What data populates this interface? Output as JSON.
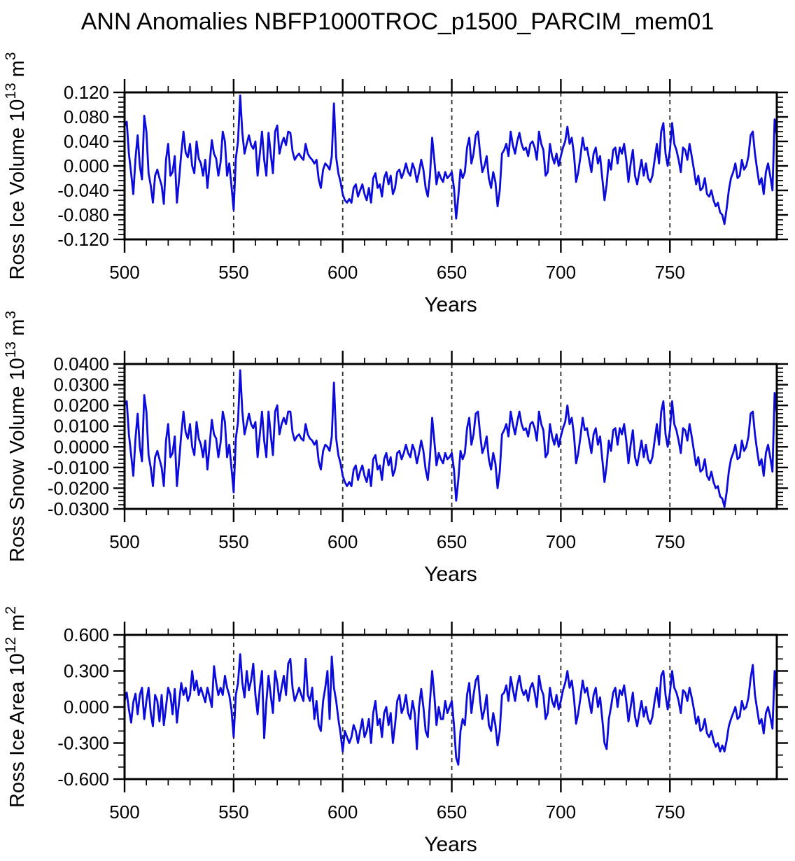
{
  "title": "ANN Anomalies NBFP1000TROC_p1500_PARCIM_mem01",
  "colors": {
    "line": "#0b0bdb",
    "frame": "#000000",
    "grid": "#2a2a2a",
    "background": "#ffffff"
  },
  "chart_data": [
    {
      "type": "line",
      "name": "ross-ice-volume",
      "ylabel_parts": [
        {
          "text": "Ross Ice Volume 10"
        },
        {
          "text": "13",
          "sup": true
        },
        {
          "text": " m"
        },
        {
          "text": "3",
          "sup": true
        }
      ],
      "xlabel": "Years",
      "xlim": [
        500,
        799
      ],
      "ylim": [
        -0.12,
        0.12
      ],
      "xticks": [
        {
          "v": 500,
          "label": "500"
        },
        {
          "v": 550,
          "label": "550"
        },
        {
          "v": 600,
          "label": "600"
        },
        {
          "v": 650,
          "label": "650"
        },
        {
          "v": 700,
          "label": "700"
        },
        {
          "v": 750,
          "label": "750"
        }
      ],
      "x_minor_step": 10,
      "ytick_values": [
        0.12,
        0.08,
        0.04,
        0.0,
        -0.04,
        -0.08,
        -0.12
      ],
      "ytick_labels": [
        "0.120",
        "0.080",
        "0.040",
        "0.000",
        "-0.040",
        "-0.080",
        "-0.120"
      ],
      "y_minor_step": 0.008,
      "gridlines_x": [
        550,
        600,
        650,
        700,
        750
      ],
      "x_start": 500,
      "x_step": 1,
      "values": [
        0.065,
        0.072,
        0.02,
        -0.012,
        -0.046,
        0.012,
        0.05,
        0.0,
        -0.022,
        0.082,
        0.056,
        -0.012,
        -0.032,
        -0.06,
        -0.016,
        -0.006,
        -0.02,
        -0.032,
        -0.062,
        0.01,
        0.036,
        -0.016,
        -0.01,
        0.016,
        -0.06,
        -0.022,
        0.02,
        0.056,
        0.022,
        0.014,
        0.036,
        0.0,
        -0.012,
        0.04,
        0.012,
        0.004,
        -0.016,
        0.01,
        -0.036,
        0.004,
        0.042,
        0.02,
        0.012,
        -0.016,
        0.006,
        0.056,
        0.04,
        -0.016,
        0.004,
        -0.032,
        -0.072,
        0.012,
        0.04,
        0.115,
        0.054,
        0.02,
        0.036,
        0.05,
        0.034,
        0.028,
        0.04,
        -0.016,
        0.02,
        0.056,
        0.01,
        -0.016,
        0.054,
        0.02,
        -0.012,
        0.056,
        0.066,
        0.02,
        0.036,
        0.046,
        0.034,
        0.056,
        0.054,
        0.024,
        0.01,
        0.016,
        0.02,
        0.014,
        0.01,
        0.036,
        0.02,
        0.014,
        0.01,
        0.004,
        0.01,
        -0.022,
        -0.036,
        -0.006,
        0.004,
        0.0,
        -0.006,
        0.016,
        0.102,
        0.014,
        -0.012,
        -0.026,
        -0.046,
        -0.056,
        -0.06,
        -0.054,
        -0.06,
        -0.036,
        -0.03,
        -0.05,
        -0.04,
        -0.03,
        -0.046,
        -0.056,
        -0.036,
        -0.06,
        -0.02,
        -0.012,
        -0.036,
        -0.03,
        -0.05,
        -0.02,
        -0.01,
        -0.03,
        -0.016,
        -0.046,
        -0.036,
        -0.01,
        -0.006,
        -0.02,
        -0.01,
        0.004,
        -0.01,
        -0.016,
        0.004,
        -0.006,
        -0.026,
        -0.01,
        0.01,
        -0.006,
        -0.036,
        -0.05,
        -0.016,
        0.046,
        0.01,
        -0.03,
        -0.01,
        -0.02,
        -0.026,
        -0.01,
        -0.02,
        -0.016,
        -0.01,
        -0.036,
        -0.086,
        -0.05,
        -0.006,
        -0.02,
        -0.01,
        0.03,
        0.046,
        0.004,
        0.02,
        0.05,
        0.056,
        0.02,
        -0.01,
        0.0,
        0.016,
        -0.02,
        -0.036,
        -0.01,
        -0.026,
        -0.066,
        -0.04,
        0.02,
        0.026,
        0.036,
        0.016,
        0.056,
        0.034,
        0.02,
        0.04,
        0.054,
        0.036,
        0.026,
        0.03,
        0.016,
        0.036,
        0.04,
        0.03,
        0.01,
        0.056,
        0.036,
        0.026,
        -0.016,
        -0.01,
        0.036,
        0.016,
        0.004,
        0.02,
        0.0,
        0.016,
        0.03,
        0.04,
        0.064,
        0.036,
        0.046,
        0.02,
        -0.026,
        -0.01,
        0.016,
        0.046,
        0.026,
        0.03,
        0.01,
        -0.01,
        0.02,
        0.03,
        0.004,
        0.016,
        -0.02,
        -0.056,
        -0.03,
        0.01,
        -0.006,
        0.026,
        0.03,
        0.004,
        0.03,
        0.02,
        0.036,
        0.01,
        -0.026,
        0.004,
        0.026,
        -0.016,
        -0.03,
        -0.01,
        0.01,
        -0.016,
        0.004,
        -0.02,
        -0.026,
        -0.016,
        0.01,
        0.036,
        0.004,
        0.056,
        0.07,
        0.02,
        0.0,
        0.026,
        0.07,
        0.036,
        0.026,
        0.01,
        -0.01,
        0.03,
        0.026,
        0.01,
        0.036,
        0.016,
        -0.006,
        -0.03,
        -0.016,
        -0.04,
        -0.036,
        -0.02,
        -0.046,
        -0.05,
        -0.04,
        -0.056,
        -0.066,
        -0.06,
        -0.076,
        -0.08,
        -0.095,
        -0.07,
        -0.04,
        -0.02,
        -0.01,
        0.004,
        -0.02,
        -0.016,
        0.01,
        -0.006,
        0.0,
        0.016,
        0.05,
        0.056,
        0.02,
        -0.006,
        -0.03,
        -0.02,
        -0.046,
        -0.01,
        0.004,
        -0.016,
        -0.04,
        0.076,
        0.05
      ]
    },
    {
      "type": "line",
      "name": "ross-snow-volume",
      "ylabel_parts": [
        {
          "text": "Ross Snow Volume 10"
        },
        {
          "text": "13",
          "sup": true
        },
        {
          "text": " m"
        },
        {
          "text": "3",
          "sup": true
        }
      ],
      "xlabel": "Years",
      "xlim": [
        500,
        799
      ],
      "ylim": [
        -0.03,
        0.04
      ],
      "xticks": [
        {
          "v": 500,
          "label": "500"
        },
        {
          "v": 550,
          "label": "550"
        },
        {
          "v": 600,
          "label": "600"
        },
        {
          "v": 650,
          "label": "650"
        },
        {
          "v": 700,
          "label": "700"
        },
        {
          "v": 750,
          "label": "750"
        }
      ],
      "x_minor_step": 10,
      "ytick_values": [
        0.04,
        0.03,
        0.02,
        0.01,
        0.0,
        -0.01,
        -0.02,
        -0.03
      ],
      "ytick_labels": [
        "0.0400",
        "0.0300",
        "0.0200",
        "0.0100",
        "0.0000",
        "-0.0100",
        "-0.0200",
        "-0.0300"
      ],
      "y_minor_step": 0.002,
      "gridlines_x": [
        550,
        600,
        650,
        700,
        750
      ],
      "x_start": 500,
      "x_step": 1,
      "values": [
        0.02,
        0.022,
        0.006,
        -0.004,
        -0.014,
        0.004,
        0.016,
        0.0,
        -0.007,
        0.025,
        0.017,
        -0.004,
        -0.01,
        -0.019,
        -0.005,
        -0.002,
        -0.006,
        -0.01,
        -0.019,
        0.003,
        0.011,
        -0.005,
        -0.003,
        0.005,
        -0.019,
        -0.007,
        0.006,
        0.017,
        0.007,
        0.004,
        0.011,
        0.0,
        -0.004,
        0.012,
        0.004,
        0.001,
        -0.005,
        0.003,
        -0.011,
        0.001,
        0.013,
        0.006,
        0.004,
        -0.005,
        0.002,
        0.017,
        0.012,
        -0.005,
        0.001,
        -0.01,
        -0.022,
        0.004,
        0.012,
        0.037,
        0.017,
        0.006,
        0.011,
        0.016,
        0.011,
        0.009,
        0.012,
        -0.005,
        0.006,
        0.017,
        0.003,
        -0.005,
        0.017,
        0.006,
        -0.004,
        0.017,
        0.02,
        0.006,
        0.011,
        0.014,
        0.011,
        0.017,
        0.017,
        0.007,
        0.003,
        0.005,
        0.006,
        0.004,
        0.003,
        0.011,
        0.006,
        0.004,
        0.003,
        0.001,
        0.003,
        -0.007,
        -0.011,
        -0.002,
        0.001,
        0.0,
        -0.002,
        0.005,
        0.031,
        0.004,
        -0.004,
        -0.008,
        -0.014,
        -0.017,
        -0.019,
        -0.017,
        -0.019,
        -0.011,
        -0.009,
        -0.016,
        -0.012,
        -0.009,
        -0.014,
        -0.017,
        -0.011,
        -0.019,
        -0.006,
        -0.004,
        -0.011,
        -0.009,
        -0.016,
        -0.006,
        -0.003,
        -0.009,
        -0.005,
        -0.014,
        -0.011,
        -0.003,
        -0.002,
        -0.006,
        -0.003,
        0.001,
        -0.003,
        -0.005,
        0.001,
        -0.002,
        -0.008,
        -0.003,
        0.003,
        -0.002,
        -0.011,
        -0.016,
        -0.005,
        0.014,
        0.003,
        -0.009,
        -0.003,
        -0.006,
        -0.008,
        -0.003,
        -0.006,
        -0.005,
        -0.003,
        -0.011,
        -0.026,
        -0.016,
        -0.002,
        -0.006,
        -0.003,
        0.009,
        0.014,
        0.001,
        0.006,
        0.016,
        0.017,
        0.006,
        -0.003,
        0.0,
        0.005,
        -0.006,
        -0.011,
        -0.003,
        -0.008,
        -0.02,
        -0.012,
        0.006,
        0.008,
        0.011,
        0.005,
        0.017,
        0.011,
        0.006,
        0.012,
        0.017,
        0.011,
        0.008,
        0.009,
        0.005,
        0.011,
        0.012,
        0.009,
        0.003,
        0.017,
        0.011,
        0.008,
        -0.005,
        -0.003,
        0.011,
        0.005,
        0.001,
        0.006,
        0.0,
        0.005,
        0.009,
        0.012,
        0.02,
        0.011,
        0.014,
        0.006,
        -0.008,
        -0.003,
        0.005,
        0.014,
        0.008,
        0.009,
        0.003,
        -0.003,
        0.006,
        0.009,
        0.001,
        0.005,
        -0.006,
        -0.017,
        -0.009,
        0.003,
        -0.002,
        0.008,
        0.009,
        0.001,
        0.009,
        0.006,
        0.011,
        0.003,
        -0.008,
        0.001,
        0.008,
        -0.005,
        -0.009,
        -0.003,
        0.003,
        -0.005,
        0.001,
        -0.006,
        -0.008,
        -0.005,
        0.003,
        0.011,
        0.001,
        0.017,
        0.022,
        0.006,
        0.0,
        0.008,
        0.022,
        0.011,
        0.008,
        0.003,
        -0.003,
        0.009,
        0.008,
        0.003,
        0.011,
        0.005,
        -0.002,
        -0.009,
        -0.005,
        -0.012,
        -0.011,
        -0.006,
        -0.014,
        -0.016,
        -0.012,
        -0.017,
        -0.02,
        -0.019,
        -0.024,
        -0.025,
        -0.029,
        -0.022,
        -0.012,
        -0.006,
        -0.003,
        0.001,
        -0.006,
        -0.005,
        0.003,
        -0.002,
        0.0,
        0.005,
        0.016,
        0.017,
        0.006,
        -0.002,
        -0.009,
        -0.006,
        -0.014,
        -0.003,
        0.001,
        -0.005,
        -0.012,
        0.026,
        0.016
      ]
    },
    {
      "type": "line",
      "name": "ross-ice-area",
      "ylabel_parts": [
        {
          "text": "Ross Ice Area 10"
        },
        {
          "text": "12",
          "sup": true
        },
        {
          "text": " m"
        },
        {
          "text": "2",
          "sup": true
        }
      ],
      "xlabel": "Years",
      "xlim": [
        500,
        799
      ],
      "ylim": [
        -0.6,
        0.6
      ],
      "xticks": [
        {
          "v": 500,
          "label": "500"
        },
        {
          "v": 550,
          "label": "550"
        },
        {
          "v": 600,
          "label": "600"
        },
        {
          "v": 650,
          "label": "650"
        },
        {
          "v": 700,
          "label": "700"
        },
        {
          "v": 750,
          "label": "750"
        }
      ],
      "x_minor_step": 10,
      "ytick_values": [
        0.6,
        0.3,
        0.0,
        -0.3,
        -0.6
      ],
      "ytick_labels": [
        "0.600",
        "0.300",
        "0.000",
        "-0.300",
        "-0.600"
      ],
      "y_minor_step": 0.1,
      "gridlines_x": [
        550,
        600,
        650,
        700,
        750
      ],
      "x_start": 500,
      "x_step": 1,
      "values": [
        0.05,
        0.12,
        -0.02,
        -0.13,
        0.04,
        0.11,
        -0.06,
        0.1,
        0.16,
        -0.1,
        0.05,
        0.16,
        -0.05,
        -0.16,
        0.1,
        0.05,
        -0.12,
        0.1,
        -0.15,
        0.0,
        0.16,
        0.1,
        -0.06,
        0.15,
        -0.13,
        0.04,
        0.2,
        0.1,
        0.16,
        0.05,
        0.1,
        0.3,
        0.14,
        0.22,
        0.1,
        0.16,
        0.1,
        0.04,
        0.16,
        0.08,
        0.0,
        0.34,
        0.2,
        0.1,
        0.16,
        0.1,
        0.26,
        0.16,
        0.1,
        -0.02,
        -0.25,
        0.1,
        0.2,
        0.44,
        0.2,
        0.08,
        0.3,
        0.14,
        0.22,
        0.36,
        0.1,
        -0.06,
        0.16,
        0.3,
        -0.26,
        0.04,
        0.26,
        0.1,
        -0.05,
        0.3,
        0.2,
        0.05,
        0.16,
        0.26,
        0.1,
        0.36,
        0.4,
        0.16,
        0.05,
        0.1,
        0.16,
        0.1,
        0.05,
        0.4,
        0.1,
        0.05,
        0.16,
        -0.1,
        0.05,
        -0.15,
        -0.2,
        0.05,
        0.16,
        0.3,
        -0.1,
        0.42,
        0.16,
        0.05,
        -0.1,
        -0.22,
        -0.37,
        -0.2,
        -0.25,
        -0.3,
        -0.25,
        -0.15,
        -0.2,
        -0.3,
        -0.2,
        -0.1,
        -0.25,
        -0.2,
        -0.1,
        -0.3,
        -0.05,
        0.05,
        -0.15,
        -0.1,
        -0.25,
        -0.05,
        0.0,
        -0.15,
        -0.05,
        -0.3,
        -0.15,
        0.05,
        0.1,
        -0.05,
        0.0,
        0.1,
        -0.05,
        -0.1,
        0.05,
        -0.05,
        -0.35,
        0.0,
        0.15,
        0.0,
        -0.2,
        -0.25,
        0.05,
        0.3,
        0.1,
        -0.15,
        0.0,
        -0.1,
        -0.1,
        0.05,
        -0.05,
        0.0,
        0.05,
        -0.15,
        -0.42,
        -0.48,
        -0.2,
        -0.1,
        -0.15,
        0.1,
        0.2,
        -0.05,
        0.1,
        0.22,
        0.26,
        0.05,
        -0.1,
        -0.02,
        0.1,
        -0.15,
        -0.2,
        -0.05,
        -0.15,
        -0.32,
        -0.2,
        0.1,
        0.12,
        0.18,
        0.05,
        0.25,
        0.15,
        0.05,
        0.18,
        0.26,
        0.15,
        0.1,
        0.14,
        0.05,
        0.16,
        0.2,
        0.12,
        0.0,
        0.26,
        0.15,
        0.1,
        -0.1,
        -0.05,
        0.16,
        0.05,
        0.0,
        0.1,
        -0.02,
        0.05,
        0.14,
        0.2,
        0.3,
        0.16,
        0.22,
        0.08,
        -0.14,
        -0.05,
        0.08,
        0.22,
        0.12,
        0.16,
        0.05,
        -0.05,
        0.1,
        0.16,
        0.0,
        0.08,
        -0.1,
        -0.3,
        -0.35,
        -0.1,
        0.0,
        0.12,
        0.16,
        0.0,
        0.14,
        0.1,
        0.18,
        0.05,
        -0.12,
        0.0,
        0.12,
        -0.08,
        -0.16,
        -0.05,
        0.05,
        -0.08,
        0.0,
        -0.1,
        -0.14,
        -0.08,
        0.05,
        0.16,
        0.0,
        0.26,
        0.3,
        0.1,
        -0.02,
        0.12,
        0.3,
        0.16,
        0.12,
        0.05,
        -0.05,
        0.14,
        0.12,
        0.05,
        0.16,
        0.08,
        -0.02,
        -0.14,
        -0.08,
        -0.2,
        -0.18,
        -0.1,
        -0.22,
        -0.25,
        -0.2,
        -0.28,
        -0.33,
        -0.3,
        -0.37,
        -0.32,
        -0.37,
        -0.28,
        -0.16,
        -0.1,
        -0.05,
        0.0,
        -0.1,
        -0.08,
        0.05,
        -0.02,
        0.0,
        0.08,
        0.24,
        0.35,
        0.1,
        -0.02,
        -0.14,
        -0.1,
        -0.22,
        -0.05,
        0.0,
        -0.08,
        -0.18,
        0.3,
        0.12
      ]
    }
  ]
}
